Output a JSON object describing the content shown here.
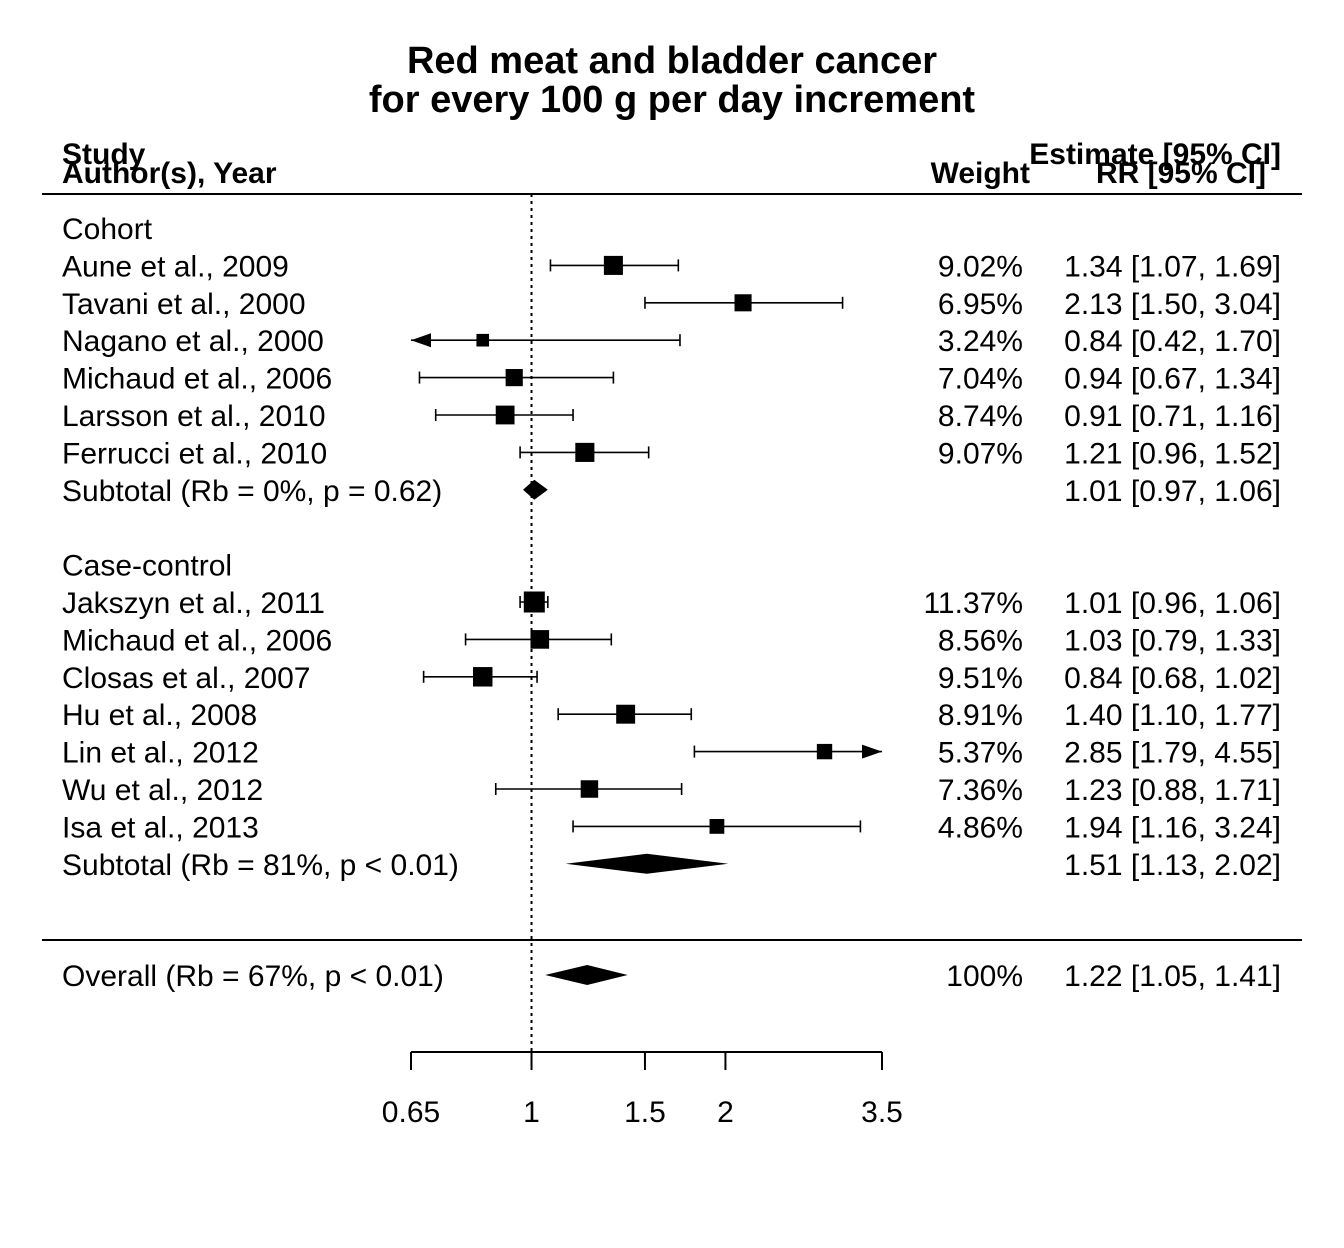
{
  "chart_data": {
    "type": "forest",
    "title_line1": "Red meat and bladder cancer",
    "title_line2": "for every 100 g per day increment",
    "headers": {
      "study_line1": "Study",
      "study_line2": "Author(s), Year",
      "weight": "Weight",
      "estimate_line1": "Estimate [95% CI]",
      "estimate_line2": "RR [95% CI]"
    },
    "x_scale": "log",
    "xlim": [
      0.65,
      3.5
    ],
    "x_ticks": [
      "0.65",
      "1",
      "1.5",
      "2",
      "3.5"
    ],
    "reference_line": 1,
    "groups": [
      {
        "name": "Cohort",
        "studies": [
          {
            "label": "Aune et al., 2009",
            "est": 1.34,
            "lo": 1.07,
            "hi": 1.69,
            "weight": "9.02%",
            "ci_text": "1.34 [1.07, 1.69]"
          },
          {
            "label": "Tavani et al., 2000",
            "est": 2.13,
            "lo": 1.5,
            "hi": 3.04,
            "weight": "6.95%",
            "ci_text": "2.13 [1.50, 3.04]"
          },
          {
            "label": "Nagano et al., 2000",
            "est": 0.84,
            "lo": 0.42,
            "hi": 1.7,
            "weight": "3.24%",
            "ci_text": "0.84 [0.42, 1.70]"
          },
          {
            "label": "Michaud et al., 2006",
            "est": 0.94,
            "lo": 0.67,
            "hi": 1.34,
            "weight": "7.04%",
            "ci_text": "0.94 [0.67, 1.34]"
          },
          {
            "label": "Larsson et al., 2010",
            "est": 0.91,
            "lo": 0.71,
            "hi": 1.16,
            "weight": "8.74%",
            "ci_text": "0.91 [0.71, 1.16]"
          },
          {
            "label": "Ferrucci et al., 2010",
            "est": 1.21,
            "lo": 0.96,
            "hi": 1.52,
            "weight": "9.07%",
            "ci_text": "1.21 [0.96, 1.52]"
          }
        ],
        "subtotal": {
          "label": "Subtotal (Rb = 0%, p = 0.62)",
          "est": 1.01,
          "lo": 0.97,
          "hi": 1.06,
          "ci_text": "1.01 [0.97, 1.06]"
        }
      },
      {
        "name": "Case-control",
        "studies": [
          {
            "label": "Jakszyn et al., 2011",
            "est": 1.01,
            "lo": 0.96,
            "hi": 1.06,
            "weight": "11.37%",
            "ci_text": "1.01 [0.96, 1.06]"
          },
          {
            "label": "Michaud et al., 2006",
            "est": 1.03,
            "lo": 0.79,
            "hi": 1.33,
            "weight": "8.56%",
            "ci_text": "1.03 [0.79, 1.33]"
          },
          {
            "label": "Closas et al., 2007",
            "est": 0.84,
            "lo": 0.68,
            "hi": 1.02,
            "weight": "9.51%",
            "ci_text": "0.84 [0.68, 1.02]"
          },
          {
            "label": "Hu et al., 2008",
            "est": 1.4,
            "lo": 1.1,
            "hi": 1.77,
            "weight": "8.91%",
            "ci_text": "1.40 [1.10, 1.77]"
          },
          {
            "label": "Lin et al., 2012",
            "est": 2.85,
            "lo": 1.79,
            "hi": 4.55,
            "weight": "5.37%",
            "ci_text": "2.85 [1.79, 4.55]"
          },
          {
            "label": "Wu et al., 2012",
            "est": 1.23,
            "lo": 0.88,
            "hi": 1.71,
            "weight": "7.36%",
            "ci_text": "1.23 [0.88, 1.71]"
          },
          {
            "label": "Isa et al., 2013",
            "est": 1.94,
            "lo": 1.16,
            "hi": 3.24,
            "weight": "4.86%",
            "ci_text": "1.94 [1.16, 3.24]"
          }
        ],
        "subtotal": {
          "label": "Subtotal (Rb = 81%, p < 0.01)",
          "est": 1.51,
          "lo": 1.13,
          "hi": 2.02,
          "ci_text": "1.51 [1.13, 2.02]"
        }
      }
    ],
    "overall": {
      "label": "Overall (Rb = 67%, p < 0.01)",
      "est": 1.22,
      "lo": 1.05,
      "hi": 1.41,
      "weight": "100%",
      "ci_text": "1.22 [1.05, 1.41]"
    }
  }
}
